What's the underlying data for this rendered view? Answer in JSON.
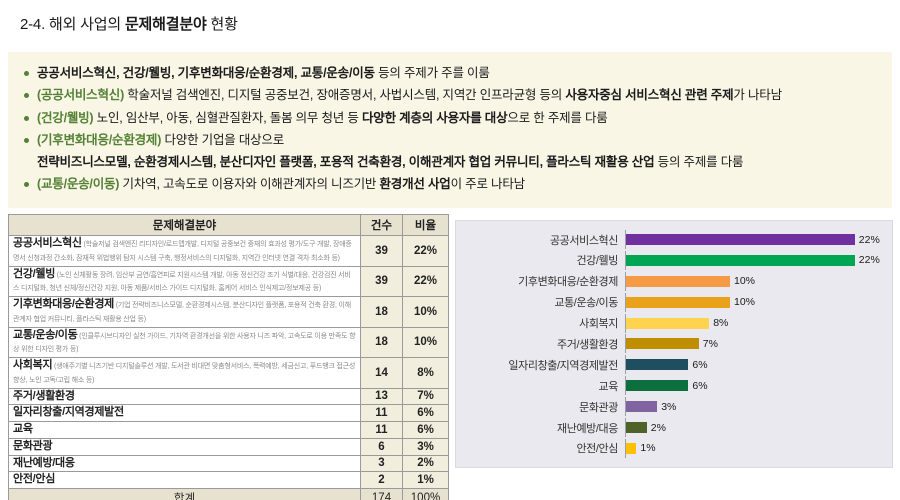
{
  "page": {
    "title_prefix": "2-4. 해외 사업의 ",
    "title_bold": "문제해결분야",
    "title_suffix": " 현황"
  },
  "colors": {
    "accent_green": "#538135",
    "box_bg": "#faf6e6",
    "table_header_bg": "#e7e2d0",
    "table_num_bg": "#f2eede",
    "chart_bg": "#e9e9ef"
  },
  "summary": {
    "bullets": [
      {
        "marker": true,
        "segments": [
          {
            "t": "공공서비스혁신, 건강/웰빙, 기후변화대응/순환경제, 교통/운송/이동",
            "b": true
          },
          {
            "t": " 등의 주제가 주를 이룸"
          }
        ]
      },
      {
        "marker": true,
        "segments": [
          {
            "t": "(공공서비스혁신)",
            "g": true
          },
          {
            "t": " 학술저널 검색엔진, 디지털 공중보건, 장애증명서, 사법시스템, 지역간 인프라균형 등의 "
          },
          {
            "t": "사용자중심 서비스혁신 관련 주제",
            "b": true
          },
          {
            "t": "가 나타남"
          }
        ]
      },
      {
        "marker": true,
        "segments": [
          {
            "t": "(건강/웰빙)",
            "g": true
          },
          {
            "t": " 노인, 임산부, 아동, 심혈관질환자, 돌봄 의무 청년 등 "
          },
          {
            "t": "다양한 계층의 사용자를 대상",
            "b": true
          },
          {
            "t": "으로 한 주제를 다룸"
          }
        ]
      },
      {
        "marker": true,
        "segments": [
          {
            "t": "(기후변화대응/순환경제)",
            "g": true
          },
          {
            "t": " 다양한 기업을 대상으로"
          }
        ]
      },
      {
        "marker": false,
        "segments": [
          {
            "t": "전략비즈니스모델, 순환경제시스템, 분산디자인 플랫폼, 포용적 건축환경, 이해관계자 협업 커뮤니티, 플라스틱 재활용 산업",
            "b": true
          },
          {
            "t": " 등의 주제를 다룸"
          }
        ]
      },
      {
        "marker": true,
        "segments": [
          {
            "t": "(교통/운송/이동)",
            "g": true
          },
          {
            "t": " 기차역, 고속도로 이용자와 이해관계자의 니즈기반 "
          },
          {
            "t": "환경개선 사업",
            "b": true
          },
          {
            "t": "이 주로 나타남"
          }
        ]
      }
    ]
  },
  "table": {
    "headers": [
      "문제해결분야",
      "건수",
      "비율"
    ],
    "rows": [
      {
        "category": "공공서비스혁신",
        "desc": "(학술저널 검색엔진 리디자인/로드맵개발, 디지털 공중보건 중재의 효과성 평가/도구 개발, 장애증명서 신청과정 간소화, 잠재적 위법행위 탐지 시스템 구축, 행정서비스의 디지털화, 지역간 인터넷 연결 격차 최소화 등)",
        "count": "39",
        "pct": "22%"
      },
      {
        "category": "건강/웰빙",
        "desc": "(노인 신체활동 장려, 임산부 금연/흡연피로 지원시스템 개발, 아동 정신건강 조기 식별/대응, 건강검진 서비스 디지털화, 청년 신체/정신건강 지원, 아동 제품/서비스 가이드 디지털화, 홈케어 서비스 인식제고/정보제공 등)",
        "count": "39",
        "pct": "22%"
      },
      {
        "category": "기후변화대응/순환경제",
        "desc": "(기업 전략비즈니스모델, 순환경제시스템, 분산디자인 플랫폼, 포용적 건축 환경, 이해관계자 협업 커뮤니티, 플라스틱 재활용 산업 등)",
        "count": "18",
        "pct": "10%"
      },
      {
        "category": "교통/운송/이동",
        "desc": "(인클루시브디자인 실천 가이드, 기차역 환경개선을 위한 사용자 니즈 파악, 고속도로 이용 만족도 향상 위한 디자인 평가 등)",
        "count": "18",
        "pct": "10%"
      },
      {
        "category": "사회복지",
        "desc": "(생애주기별 니즈기반 디지털솔루션 개발, 도서관 비대면 맞춤형서비스, 폭력예방, 세금신고, 푸드뱅크 접근성 향상, 노인 고독/고립 해소 등)",
        "count": "14",
        "pct": "8%"
      },
      {
        "category": "주거/생활환경",
        "desc": "",
        "count": "13",
        "pct": "7%"
      },
      {
        "category": "일자리창출/지역경제발전",
        "desc": "",
        "count": "11",
        "pct": "6%"
      },
      {
        "category": "교육",
        "desc": "",
        "count": "11",
        "pct": "6%"
      },
      {
        "category": "문화관광",
        "desc": "",
        "count": "6",
        "pct": "3%"
      },
      {
        "category": "재난예방/대응",
        "desc": "",
        "count": "3",
        "pct": "2%"
      },
      {
        "category": "안전/안심",
        "desc": "",
        "count": "2",
        "pct": "1%"
      }
    ],
    "total": {
      "label": "합계",
      "count": "174",
      "pct": "100%"
    }
  },
  "chart_data": {
    "type": "bar",
    "orientation": "horizontal",
    "categories": [
      "공공서비스혁신",
      "건강/웰빙",
      "기후변화대응/순환경제",
      "교통/운송/이동",
      "사회복지",
      "주거/생활환경",
      "일자리창출/지역경제발전",
      "교육",
      "문화관광",
      "재난예방/대응",
      "안전/안심"
    ],
    "values": [
      22,
      22,
      10,
      10,
      8,
      7,
      6,
      6,
      3,
      2,
      1
    ],
    "value_labels": [
      "22%",
      "22%",
      "10%",
      "10%",
      "8%",
      "7%",
      "6%",
      "6%",
      "3%",
      "2%",
      "1%"
    ],
    "colors": [
      "#7030a0",
      "#00a651",
      "#f59b45",
      "#e9a21a",
      "#ffd34d",
      "#bf8f00",
      "#1f4e5f",
      "#0e6f3e",
      "#8064a2",
      "#4f6228",
      "#ffc000"
    ],
    "unit": "%",
    "xlim": [
      0,
      25
    ],
    "grid": false,
    "legend": false,
    "title": ""
  }
}
